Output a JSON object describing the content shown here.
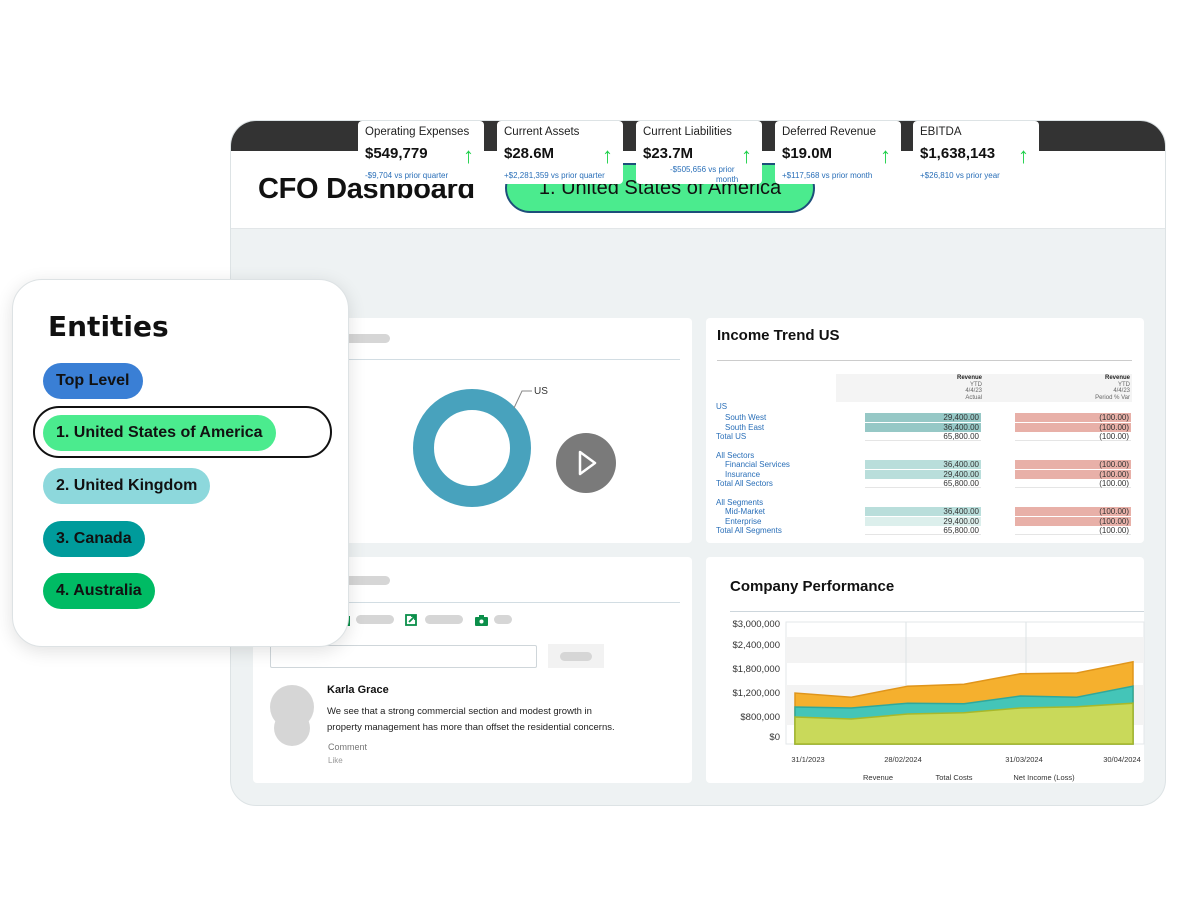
{
  "header": {
    "title": "CFO Dashboard",
    "entity_pill": "1. United States of America"
  },
  "kpis": [
    {
      "label": "Operating Expenses",
      "value": "$549,779",
      "delta": "-$9,704 vs prior quarter",
      "trend": "up-arrow-icon"
    },
    {
      "label": "Current Assets",
      "value": "$28.6M",
      "delta": "+$2,281,359 vs prior quarter",
      "trend": "up-arrow-icon"
    },
    {
      "label": "Current Liabilities",
      "value": "$23.7M",
      "delta": "-$505,656 vs prior",
      "delta2": "month",
      "trend": "up-arrow-icon"
    },
    {
      "label": "Deferred Revenue",
      "value": "$19.0M",
      "delta": "+$117,568 vs prior month",
      "trend": "up-arrow-icon"
    },
    {
      "label": "EBITDA",
      "value": "$1,638,143",
      "delta": "+$26,810 vs prior year",
      "trend": "up-arrow-icon"
    }
  ],
  "donut": {
    "label": "US",
    "color": "#48a2bd"
  },
  "income_trend": {
    "title": "Income Trend US",
    "col1": {
      "h1": "Revenue",
      "h2": "YTD",
      "h3": "4/4/23",
      "h4": "Actual"
    },
    "col2": {
      "h1": "Revenue",
      "h2": "YTD",
      "h3": "4/4/23",
      "h4": "Period % Var"
    },
    "rows": [
      {
        "label": "US",
        "indent": 0
      },
      {
        "label": "South West",
        "indent": 1,
        "v1": "29,400.00",
        "v2": "(100.00)"
      },
      {
        "label": "South East",
        "indent": 1,
        "v1": "36,400.00",
        "v2": "(100.00)"
      },
      {
        "label": "Total US",
        "indent": 0,
        "v1": "65,800.00",
        "v2": "(100.00)"
      },
      {
        "label": "All Sectors",
        "indent": 0
      },
      {
        "label": "Financial Services",
        "indent": 1,
        "v1": "36,400.00",
        "v2": "(100.00)"
      },
      {
        "label": "Insurance",
        "indent": 1,
        "v1": "29,400.00",
        "v2": "(100.00)"
      },
      {
        "label": "Total All Sectors",
        "indent": 0,
        "v1": "65,800.00",
        "v2": "(100.00)"
      },
      {
        "label": "All Segments",
        "indent": 0
      },
      {
        "label": "Mid-Market",
        "indent": 1,
        "v1": "36,400.00",
        "v2": "(100.00)"
      },
      {
        "label": "Enterprise",
        "indent": 1,
        "v1": "29,400.00",
        "v2": "(100.00)"
      },
      {
        "label": "Total All Segments",
        "indent": 0,
        "v1": "65,800.00",
        "v2": "(100.00)"
      }
    ]
  },
  "comment": {
    "author": "Karla Grace",
    "line1": "We see that a strong commercial section and modest growth in",
    "line2": "property management has more than offset the residential concerns.",
    "comment_label": "Comment",
    "like_label": "Like"
  },
  "entities": {
    "title": "Entities",
    "items": [
      {
        "label": "Top Level",
        "color": "#3a7fd5"
      },
      {
        "label": "1. United States of America",
        "color": "#4beb8e",
        "selected": true
      },
      {
        "label": "2. United Kingdom",
        "color": "#8dd8dc"
      },
      {
        "label": "3. Canada",
        "color": "#009b9b"
      },
      {
        "label": "4. Australia",
        "color": "#00bb64"
      }
    ]
  },
  "chart_data": {
    "type": "area",
    "title": "Company Performance",
    "y_ticks": [
      "$0",
      "$800,000",
      "$1,200,000",
      "$1,800,000",
      "$2,400,000",
      "$3,000,000"
    ],
    "y_tick_values": [
      0,
      800000,
      1200000,
      1800000,
      2400000,
      3000000
    ],
    "x_tick_labels": [
      "31/1/2023",
      "28/02/2024",
      "31/03/2024",
      "30/04/2024"
    ],
    "legend": [
      "Revenue",
      "Total Costs",
      "Net Income (Loss)"
    ],
    "legend_placement": "bottom",
    "series": [
      {
        "name": "Revenue",
        "color": "#f5b02e",
        "values": [
          1200000,
          1130000,
          1370000,
          1420000,
          1680000,
          1700000,
          1980000
        ]
      },
      {
        "name": "Total Costs",
        "color": "#44c5b8",
        "values": [
          967000,
          950000,
          1030000,
          1020000,
          1150000,
          1130000,
          1370000
        ]
      },
      {
        "name": "Net Income (Loss)",
        "color": "#c9d95a",
        "values": [
          800000,
          720000,
          850000,
          870000,
          950000,
          970000,
          1030000
        ]
      }
    ]
  }
}
